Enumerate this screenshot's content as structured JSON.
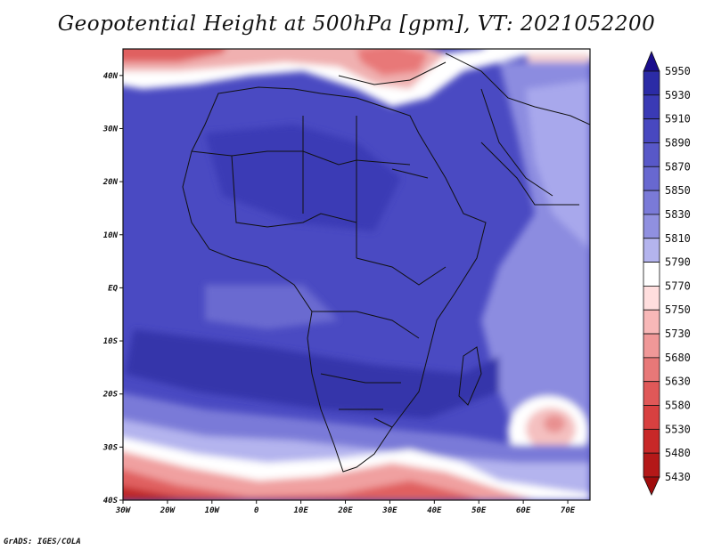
{
  "title": "Geopotential Height at 500hPa [gpm], VT: 2021052200",
  "credit": "GrADS: IGES/COLA",
  "map": {
    "lat_ticks": [
      "40N",
      "30N",
      "20N",
      "10N",
      "EQ",
      "10S",
      "20S",
      "30S",
      "40S"
    ],
    "lon_ticks": [
      "30W",
      "20W",
      "10W",
      "0",
      "10E",
      "20E",
      "30E",
      "40E",
      "50E",
      "60E",
      "70E"
    ],
    "lon_range": [
      -30,
      75
    ],
    "lat_range": [
      -40,
      45
    ]
  },
  "colorbar": {
    "levels": [
      "5950",
      "5930",
      "5910",
      "5890",
      "5870",
      "5850",
      "5830",
      "5810",
      "5790",
      "5770",
      "5750",
      "5730",
      "5680",
      "5630",
      "5580",
      "5530",
      "5480",
      "5430"
    ],
    "colors": [
      "#1a0d8c",
      "#2b2ba6",
      "#3a3ab5",
      "#4848c0",
      "#5858c8",
      "#6868d0",
      "#7a7ad8",
      "#9090e0",
      "#b4b4ee",
      "#ffffff",
      "#ffdede",
      "#f8b8b8",
      "#f09898",
      "#e87878",
      "#e05858",
      "#d84040",
      "#c82828",
      "#b41818",
      "#a00c0c"
    ]
  }
}
